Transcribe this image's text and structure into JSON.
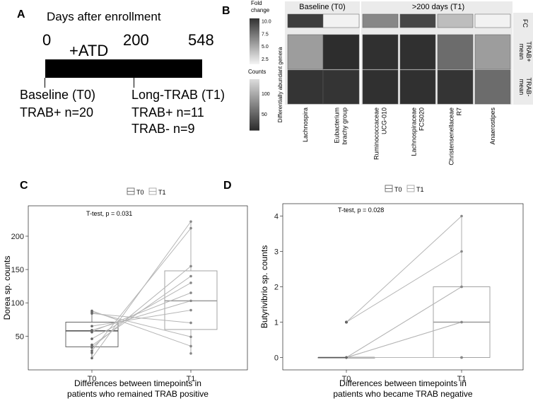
{
  "panels": {
    "a": {
      "letter": "A",
      "title": "Days after enrollment",
      "ticks": [
        "0",
        "200",
        "548"
      ],
      "treatment": "+ATD",
      "baseline_label": "Baseline (T0)",
      "baseline_count": "TRAB+ n=20",
      "long_label": "Long-TRAB (T1)",
      "long_count_pos": "TRAB+ n=11",
      "long_count_neg": "TRAB-  n=9"
    },
    "b": {
      "letter": "B",
      "legend_fc_title": [
        "Fold",
        "change"
      ],
      "legend_fc_ticks": [
        "10.0",
        "7.5",
        "5.0",
        "2.5"
      ],
      "legend_counts_title": "Counts",
      "legend_counts_ticks": [
        "100",
        "50"
      ],
      "yaxis_label": "Differentially abundant genera",
      "facet_top": [
        "Baseline (T0)",
        ">200 days (T1)"
      ],
      "row_labels": [
        [
          "FC"
        ],
        [
          "mean",
          "TRAB+"
        ],
        [
          "mean",
          "TRAB-"
        ]
      ],
      "col_labels": [
        [
          "Lachnospira"
        ],
        [
          "Eubacterium",
          "brachy group"
        ],
        [
          "Ruminococcaceae",
          "UCG-010"
        ],
        [
          "Lachnospiraceae",
          "FCS020"
        ],
        [
          "Christensenellaceae",
          "R7"
        ],
        [
          "Anaerostipes"
        ]
      ]
    },
    "c": {
      "letter": "C",
      "legend": [
        "T0",
        "T1"
      ],
      "stat": "T-test, p = 0.031",
      "ylabel": "Dorea sp. counts",
      "xlabel_line1": "Differences between timepoints in",
      "xlabel_line2": "patients who remained TRAB positive"
    },
    "d": {
      "letter": "D",
      "legend": [
        "T0",
        "T1"
      ],
      "stat": "T-test, p = 0.028",
      "ylabel": "Butyrivibrio sp. counts",
      "xlabel_line1": "Differences between timepoints in",
      "xlabel_line2": "patients who became TRAB negative"
    }
  },
  "chart_data": [
    {
      "panel": "B",
      "type": "heatmap",
      "rows": [
        "FC",
        "mean TRAB+",
        "mean TRAB-"
      ],
      "columns": [
        "Lachnospira",
        "Eubacterium brachy group",
        "Ruminococcaceae UCG-010",
        "Lachnospiraceae FCS020",
        "Christensenellaceae R7",
        "Anaerostipes"
      ],
      "groups": {
        "Baseline (T0)": [
          "Lachnospira",
          "Eubacterium brachy group"
        ],
        ">200 days (T1)": [
          "Ruminococcaceae UCG-010",
          "Lachnospiraceae FCS020",
          "Christensenellaceae R7",
          "Anaerostipes"
        ]
      },
      "fold_change": [
        10.0,
        1.5,
        6.5,
        9.5,
        4.0,
        1.5
      ],
      "mean_trab_pos": [
        90,
        10,
        12,
        12,
        55,
        90
      ],
      "mean_trab_neg": [
        15,
        15,
        12,
        12,
        15,
        55
      ],
      "fc_scale": [
        1.5,
        10.5
      ],
      "counts_scale": [
        10,
        135
      ]
    },
    {
      "panel": "C",
      "type": "box_paired",
      "title": "",
      "xlabel": "Differences between timepoints in patients who remained TRAB positive",
      "ylabel": "Dorea sp. counts",
      "categories": [
        "T0",
        "T1"
      ],
      "ylim": [
        10,
        235
      ],
      "yticks": [
        50,
        100,
        150,
        200
      ],
      "pairs": [
        [
          17,
          222
        ],
        [
          28,
          212
        ],
        [
          33,
          155
        ],
        [
          36,
          140
        ],
        [
          46,
          130
        ],
        [
          57,
          115
        ],
        [
          59,
          103
        ],
        [
          65,
          89
        ],
        [
          84,
          70
        ],
        [
          86,
          49
        ],
        [
          88,
          35
        ]
      ],
      "extra_t0": [
        25,
        37,
        56
      ],
      "extra_t1": [
        24
      ],
      "box": [
        {
          "category": "T0",
          "q1": 34,
          "median": 58,
          "q3": 71,
          "whisker_low": 17,
          "whisker_high": 88
        },
        {
          "category": "T1",
          "q1": 60,
          "median": 103,
          "q3": 148,
          "whisker_low": 24,
          "whisker_high": 222
        }
      ],
      "annotation": "T-test, p = 0.031"
    },
    {
      "panel": "D",
      "type": "box_paired",
      "title": "",
      "xlabel": "Differences between timepoints in patients who became TRAB negative",
      "ylabel": "Butyrivibrio sp. counts",
      "categories": [
        "T0",
        "T1"
      ],
      "ylim": [
        -0.15,
        4.15
      ],
      "yticks": [
        0,
        1,
        2,
        3,
        4
      ],
      "pairs": [
        [
          1,
          4
        ],
        [
          1,
          3
        ],
        [
          0,
          2
        ],
        [
          0,
          2
        ],
        [
          0,
          1
        ],
        [
          0,
          0
        ],
        [
          0,
          1
        ],
        [
          0,
          0
        ],
        [
          0,
          0
        ]
      ],
      "box": [
        {
          "category": "T0",
          "q1": 0,
          "median": 0,
          "q3": 0,
          "whisker_low": 0,
          "whisker_high": 0,
          "outliers": [
            1
          ]
        },
        {
          "category": "T1",
          "q1": 0,
          "median": 1,
          "q3": 2,
          "whisker_low": 0,
          "whisker_high": 4
        }
      ],
      "annotation": "T-test, p = 0.028"
    }
  ]
}
